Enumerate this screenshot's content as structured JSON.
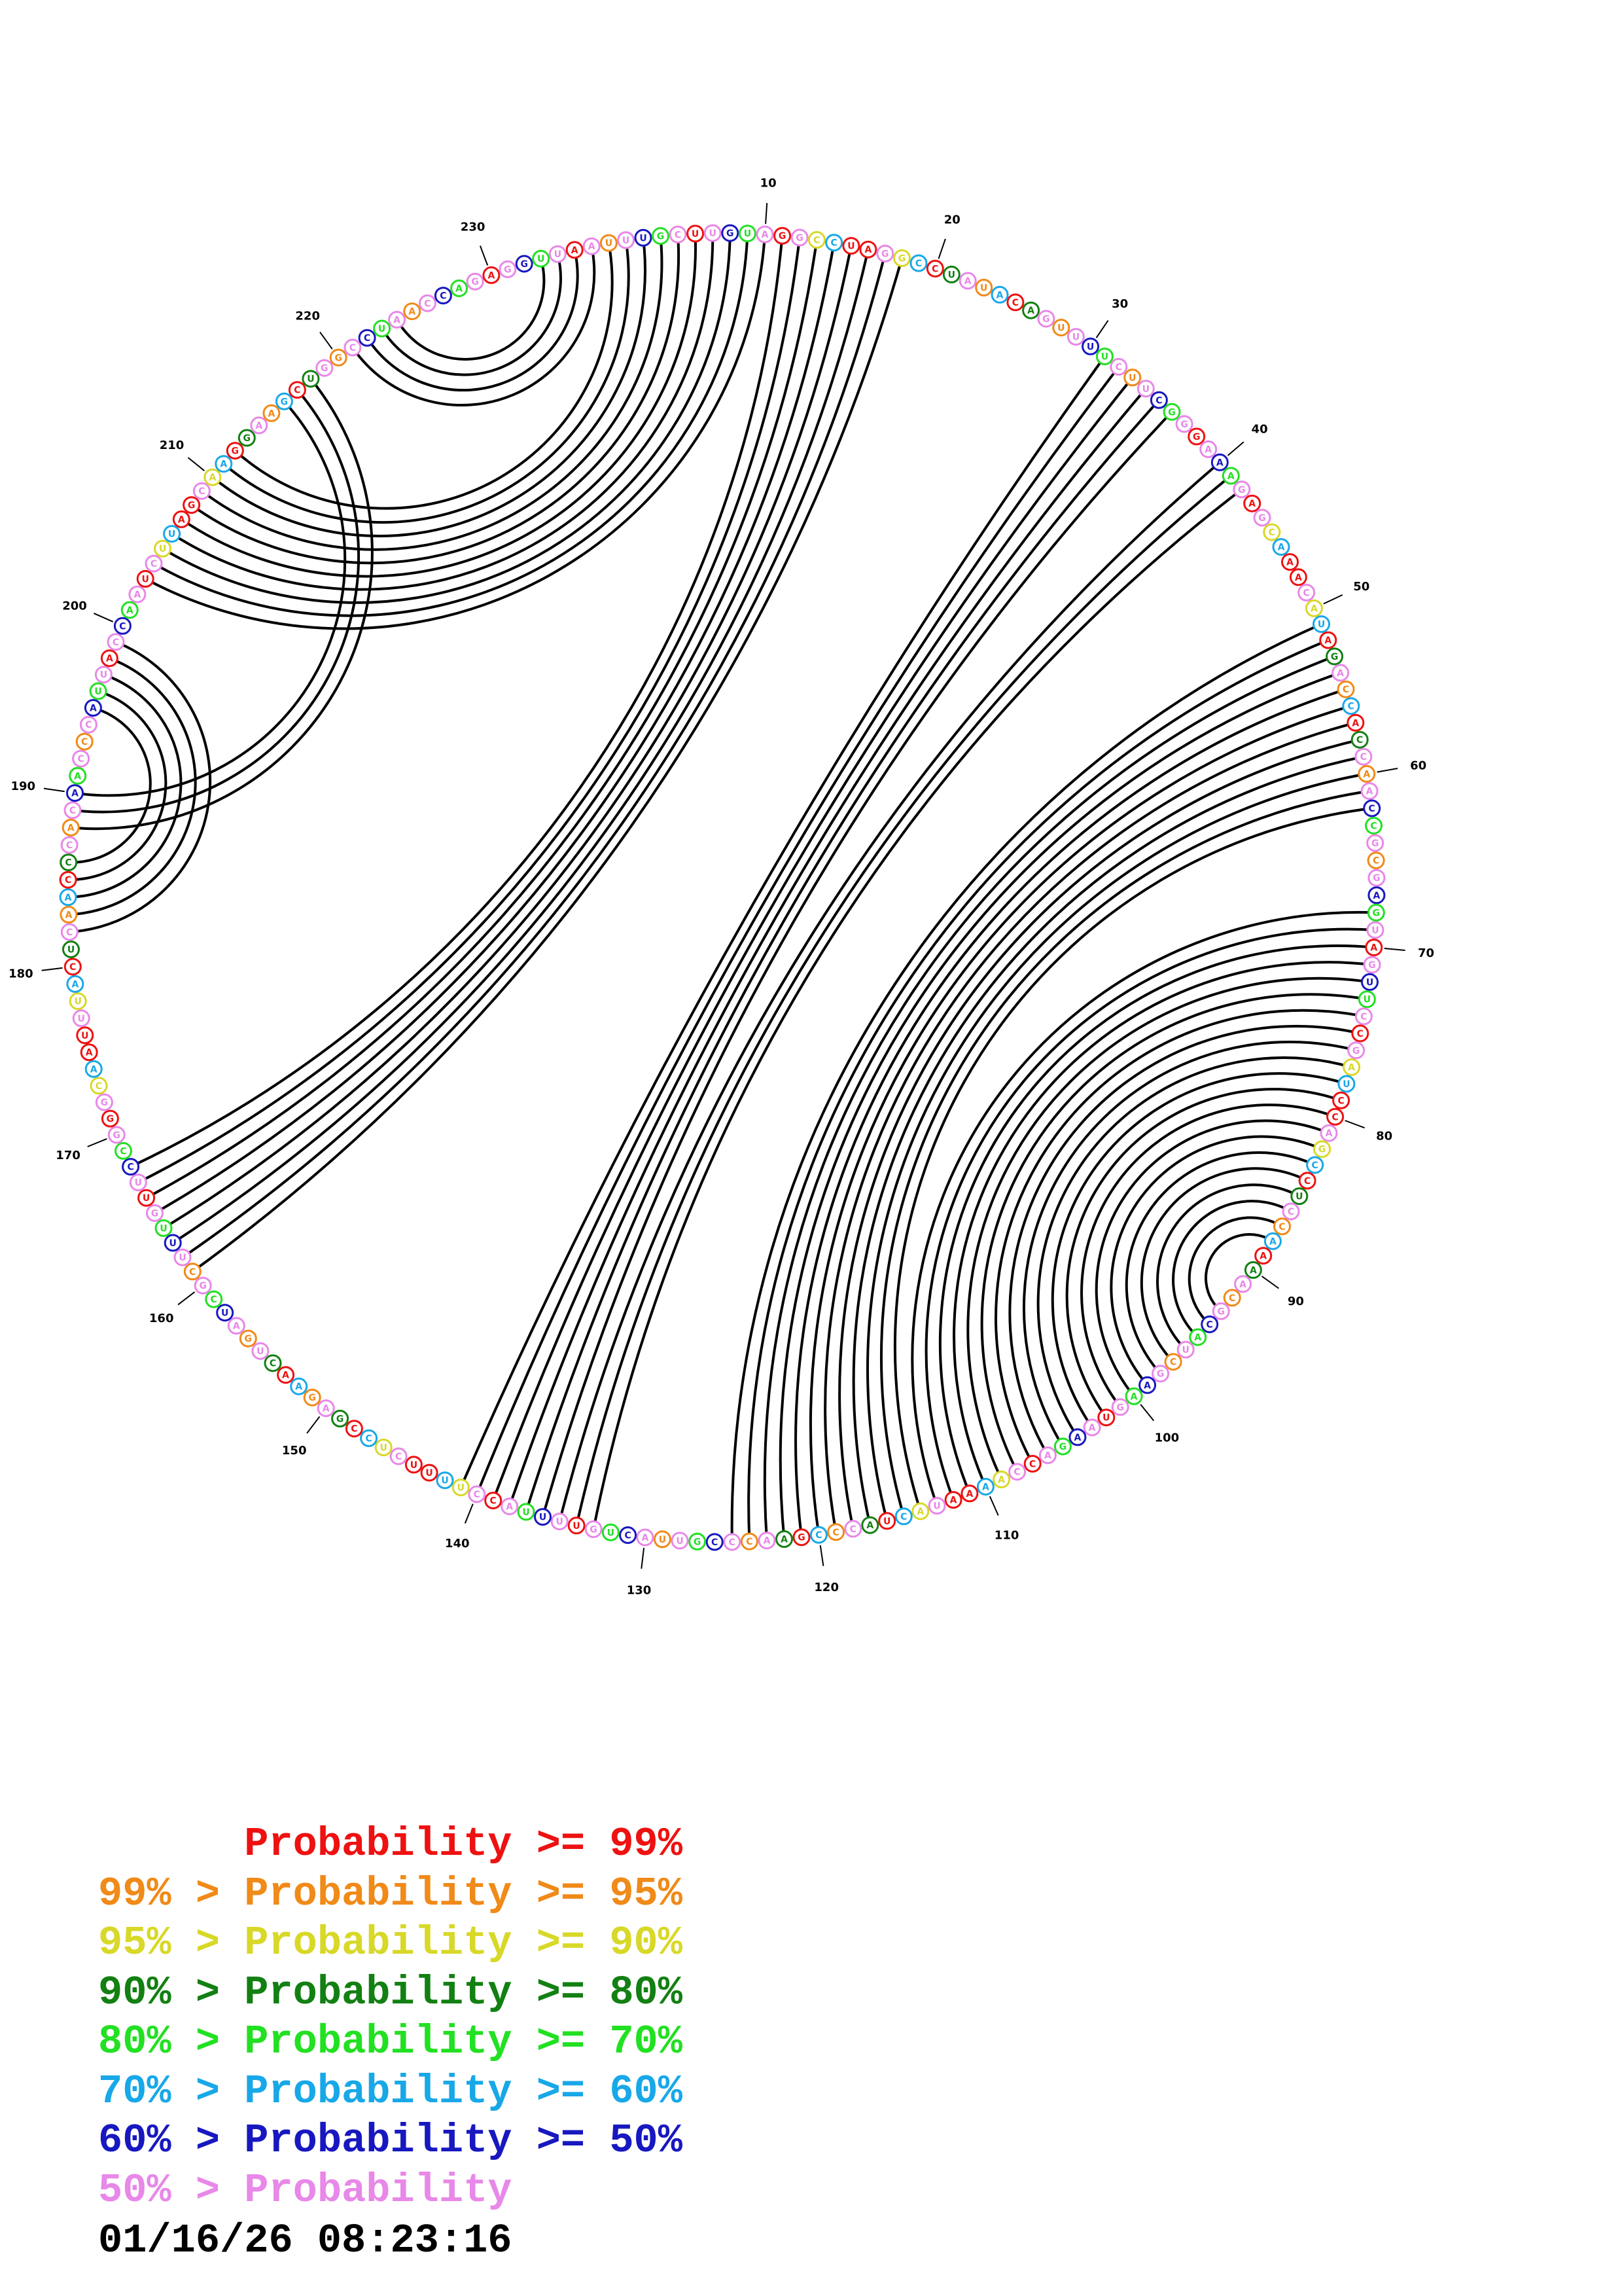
{
  "diagram": {
    "sequence": "UUUGCUUGUAGGCCUAGGCCUAUACAGUUUUCUUCGGGAAAGAGCAAACAUAGACCACCAACCGCGAGUAGUUCCGAUCCAGCCUCCAAAACGCAUCGAAGUAAGACCAAAAUACUACCCGAACCCGUUACUGUUUUACCUUUUCUCCGAGAACUGAUCGCUUUGUUCCGGGCAAUUUACUCAACCCACAACCCAUUACCAAUCUUAGCAAGGAAGCUGGCCUAACCAGAGGUUAA",
    "nucleotide_colors": {
      "red": "#ee1111",
      "orange": "#f08a18",
      "yellow": "#d8d828",
      "dark_green": "#128012",
      "green": "#22e022",
      "cyan": "#18a8e8",
      "blue": "#1818c0",
      "pink": "#e888e8"
    },
    "position_labels": [
      "10",
      "20",
      "30",
      "40",
      "50",
      "60",
      "70",
      "80",
      "90",
      "100",
      "110",
      "120",
      "130",
      "140",
      "150",
      "160",
      "170",
      "180",
      "190",
      "200",
      "210",
      "220",
      "230"
    ],
    "base_pairs": [
      [
        1,
        212
      ],
      [
        2,
        211
      ],
      [
        3,
        210
      ],
      [
        4,
        209
      ],
      [
        5,
        208
      ],
      [
        6,
        207
      ],
      [
        7,
        206
      ],
      [
        8,
        205
      ],
      [
        9,
        204
      ],
      [
        10,
        203
      ],
      [
        11,
        168
      ],
      [
        12,
        167
      ],
      [
        13,
        166
      ],
      [
        14,
        165
      ],
      [
        15,
        164
      ],
      [
        16,
        163
      ],
      [
        17,
        162
      ],
      [
        18,
        161
      ],
      [
        31,
        141
      ],
      [
        32,
        140
      ],
      [
        33,
        139
      ],
      [
        34,
        138
      ],
      [
        35,
        137
      ],
      [
        36,
        136
      ],
      [
        40,
        135
      ],
      [
        41,
        134
      ],
      [
        42,
        133
      ],
      [
        51,
        125
      ],
      [
        52,
        124
      ],
      [
        53,
        123
      ],
      [
        54,
        122
      ],
      [
        55,
        121
      ],
      [
        56,
        120
      ],
      [
        57,
        119
      ],
      [
        58,
        118
      ],
      [
        59,
        117
      ],
      [
        60,
        116
      ],
      [
        61,
        115
      ],
      [
        62,
        114
      ],
      [
        68,
        113
      ],
      [
        69,
        112
      ],
      [
        70,
        111
      ],
      [
        71,
        110
      ],
      [
        72,
        109
      ],
      [
        73,
        108
      ],
      [
        74,
        107
      ],
      [
        75,
        106
      ],
      [
        76,
        105
      ],
      [
        77,
        104
      ],
      [
        78,
        103
      ],
      [
        79,
        102
      ],
      [
        80,
        101
      ],
      [
        81,
        100
      ],
      [
        82,
        99
      ],
      [
        83,
        98
      ],
      [
        84,
        97
      ],
      [
        85,
        96
      ],
      [
        86,
        95
      ],
      [
        87,
        94
      ],
      [
        88,
        93
      ],
      [
        182,
        199
      ],
      [
        183,
        198
      ],
      [
        184,
        197
      ],
      [
        185,
        196
      ],
      [
        186,
        195
      ],
      [
        188,
        218
      ],
      [
        189,
        217
      ],
      [
        190,
        216
      ],
      [
        221,
        236
      ],
      [
        222,
        235
      ],
      [
        223,
        234
      ],
      [
        224,
        233
      ]
    ]
  },
  "legend": [
    {
      "text": "      Probability >= 99%",
      "color": "#ee1111"
    },
    {
      "text": "99% > Probability >= 95%",
      "color": "#f08a18"
    },
    {
      "text": "95% > Probability >= 90%",
      "color": "#d8d828"
    },
    {
      "text": "90% > Probability >= 80%",
      "color": "#128012"
    },
    {
      "text": "80% > Probability >= 70%",
      "color": "#22e022"
    },
    {
      "text": "70% > Probability >= 60%",
      "color": "#18a8e8"
    },
    {
      "text": "60% > Probability >= 50%",
      "color": "#1818c0"
    },
    {
      "text": "50% > Probability",
      "color": "#e888e8"
    }
  ],
  "timestamp": "01/16/26 08:23:16"
}
